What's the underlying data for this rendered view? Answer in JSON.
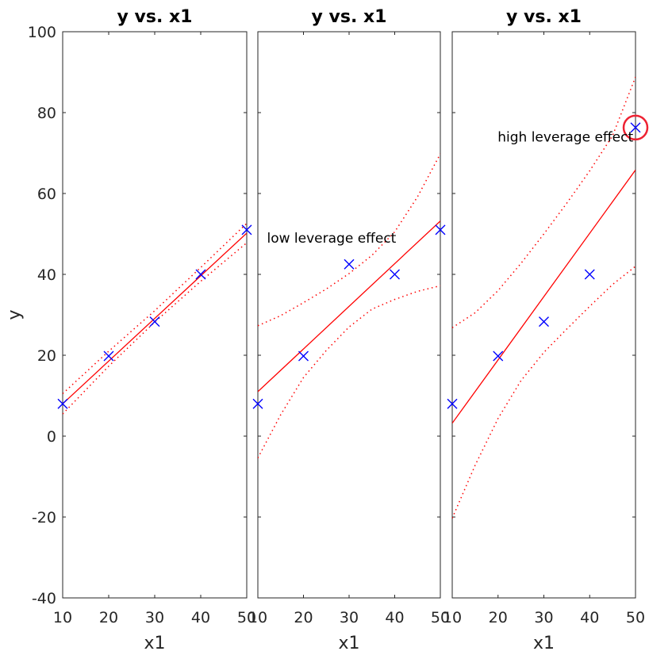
{
  "chart_data": [
    {
      "type": "scatter",
      "title": "y vs. x1",
      "xlabel": "x1",
      "ylabel": "y",
      "xlim": [
        10,
        50
      ],
      "ylim": [
        -40,
        100
      ],
      "xticks": [
        10,
        20,
        30,
        40,
        50
      ],
      "yticks": [
        -40,
        -20,
        0,
        20,
        40,
        60,
        80,
        100
      ],
      "grid": false,
      "marker_color": "#0000ff",
      "fit_color": "#ff0000",
      "points": [
        {
          "x": 10,
          "y": 8
        },
        {
          "x": 20,
          "y": 19.8
        },
        {
          "x": 30,
          "y": 28.3
        },
        {
          "x": 40,
          "y": 40
        },
        {
          "x": 50,
          "y": 51
        }
      ],
      "fit": {
        "x": [
          10,
          50
        ],
        "y": [
          8,
          50.2
        ]
      },
      "ci_upper": [
        [
          10,
          10.5
        ],
        [
          20,
          21
        ],
        [
          30,
          31
        ],
        [
          40,
          41.7
        ],
        [
          50,
          52.6
        ]
      ],
      "ci_lower": [
        [
          10,
          5.5
        ],
        [
          20,
          17.3
        ],
        [
          30,
          28.2
        ],
        [
          40,
          38.3
        ],
        [
          50,
          47.8
        ]
      ]
    },
    {
      "type": "scatter",
      "title": "y vs. x1",
      "xlabel": "x1",
      "ylabel": "",
      "xlim": [
        10,
        50
      ],
      "ylim": [
        -40,
        100
      ],
      "xticks": [
        10,
        20,
        30,
        40,
        50
      ],
      "grid": false,
      "marker_color": "#0000ff",
      "fit_color": "#ff0000",
      "points": [
        {
          "x": 10,
          "y": 8
        },
        {
          "x": 20,
          "y": 19.8
        },
        {
          "x": 30,
          "y": 42.5
        },
        {
          "x": 40,
          "y": 40
        },
        {
          "x": 50,
          "y": 51
        }
      ],
      "fit": {
        "x": [
          10,
          50
        ],
        "y": [
          11,
          53.2
        ]
      },
      "ci_upper": [
        [
          10,
          27.3
        ],
        [
          15,
          29.8
        ],
        [
          20,
          33
        ],
        [
          25,
          36.4
        ],
        [
          30,
          40.2
        ],
        [
          35,
          44.7
        ],
        [
          40,
          50.5
        ],
        [
          45,
          59.2
        ],
        [
          50,
          69.8
        ]
      ],
      "ci_lower": [
        [
          10,
          -5.4
        ],
        [
          15,
          5.3
        ],
        [
          20,
          14.5
        ],
        [
          25,
          21.2
        ],
        [
          30,
          27
        ],
        [
          35,
          31.4
        ],
        [
          40,
          33.8
        ],
        [
          45,
          35.8
        ],
        [
          50,
          37.2
        ]
      ],
      "annotations": [
        {
          "text": "low leverage effect",
          "x": 12,
          "y": 49
        }
      ]
    },
    {
      "type": "scatter",
      "title": "y vs. x1",
      "xlabel": "x1",
      "ylabel": "",
      "xlim": [
        10,
        50
      ],
      "ylim": [
        -40,
        100
      ],
      "xticks": [
        10,
        20,
        30,
        40,
        50
      ],
      "grid": false,
      "marker_color": "#0000ff",
      "fit_color": "#ff0000",
      "highlight_color": "#ee2233",
      "points": [
        {
          "x": 10,
          "y": 8
        },
        {
          "x": 20,
          "y": 19.8
        },
        {
          "x": 30,
          "y": 28.3
        },
        {
          "x": 40,
          "y": 40
        },
        {
          "x": 50,
          "y": 76.3
        }
      ],
      "fit": {
        "x": [
          10,
          50
        ],
        "y": [
          3.2,
          65.8
        ]
      },
      "ci_upper": [
        [
          10,
          26.8
        ],
        [
          15,
          30.5
        ],
        [
          20,
          36
        ],
        [
          25,
          42.7
        ],
        [
          30,
          50
        ],
        [
          35,
          57.6
        ],
        [
          40,
          65.6
        ],
        [
          45,
          74.3
        ],
        [
          50,
          88.8
        ]
      ],
      "ci_lower": [
        [
          10,
          -20.3
        ],
        [
          15,
          -7.2
        ],
        [
          20,
          4.4
        ],
        [
          25,
          13.7
        ],
        [
          30,
          20.7
        ],
        [
          35,
          26.5
        ],
        [
          40,
          32.1
        ],
        [
          45,
          37.5
        ],
        [
          50,
          42
        ]
      ],
      "annotations": [
        {
          "text": "high leverage effect",
          "x": 49.5,
          "y": 74,
          "anchor": "end"
        }
      ],
      "highlight_point": {
        "x": 50,
        "y": 76.3
      }
    }
  ]
}
